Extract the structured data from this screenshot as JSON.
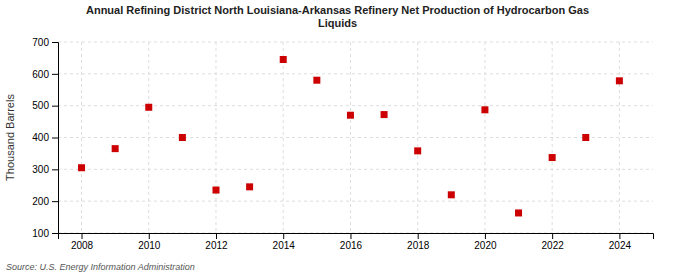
{
  "chart_data": {
    "type": "scatter",
    "title": "Annual Refining District North Louisiana-Arkansas Refinery Net Production of Hydrocarbon Gas\nLiquids",
    "y_label": "Thousand Barrels",
    "annotations": [
      "Source: U.S. Energy Information Administration"
    ],
    "x": [
      2008,
      2009,
      2010,
      2011,
      2012,
      2013,
      2014,
      2015,
      2016,
      2017,
      2018,
      2019,
      2020,
      2021,
      2022,
      2023,
      2024
    ],
    "values": [
      305,
      365,
      495,
      400,
      235,
      245,
      645,
      580,
      470,
      472,
      358,
      220,
      487,
      163,
      337,
      400,
      578
    ],
    "color": "#cc0000",
    "marker": "square",
    "xlim": [
      2007.3,
      2025.0
    ],
    "xticks": [
      2008,
      2010,
      2012,
      2014,
      2016,
      2018,
      2020,
      2022,
      2024
    ],
    "ylim": [
      100,
      700
    ],
    "yticks": [
      100,
      200,
      300,
      400,
      500,
      600,
      700
    ],
    "grid": true
  }
}
